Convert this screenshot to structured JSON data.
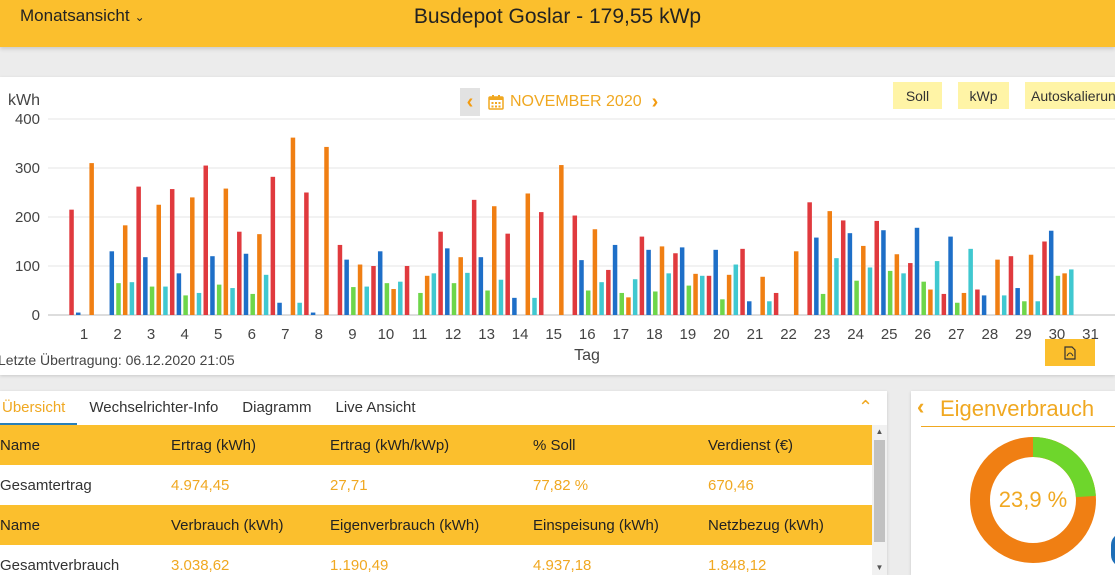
{
  "header": {
    "view_select": "Monatsansicht",
    "title": "Busdepot Goslar - 179,55 kWp"
  },
  "nav": {
    "month": "NOVEMBER 2020"
  },
  "toggles": {
    "soll": "Soll",
    "kwp": "kWp",
    "autoscale": "Autoskalierung"
  },
  "last_transfer": "Letzte Übertragung: 06.12.2020 21:05",
  "colors": {
    "header": "#fbbf2d",
    "accent": "#f0a821",
    "series": [
      "#e03a3e",
      "#1e6fc8",
      "#6ed64a",
      "#f07f13",
      "#40c8d0"
    ]
  },
  "chart_data": {
    "type": "bar",
    "ylabel": "kWh",
    "xlabel": "Tag",
    "ylim": [
      0,
      400
    ],
    "yticks": [
      0,
      100,
      200,
      300,
      400
    ],
    "categories": [
      "1",
      "2",
      "3",
      "4",
      "5",
      "6",
      "7",
      "8",
      "9",
      "10",
      "11",
      "12",
      "13",
      "14",
      "15",
      "16",
      "17",
      "18",
      "19",
      "20",
      "21",
      "22",
      "23",
      "24",
      "25",
      "26",
      "27",
      "28",
      "29",
      "30",
      "31"
    ],
    "series": [
      {
        "values": [
          215,
          0,
          262,
          257,
          305,
          170,
          282,
          250,
          143,
          100,
          100,
          170,
          235,
          166,
          210,
          203,
          92,
          160,
          126,
          80,
          135,
          45,
          230,
          193,
          192,
          106,
          43,
          52,
          120,
          150,
          0
        ]
      },
      {
        "values": [
          5,
          130,
          118,
          85,
          120,
          125,
          25,
          5,
          113,
          130,
          0,
          136,
          118,
          35,
          0,
          112,
          143,
          133,
          138,
          133,
          28,
          0,
          158,
          167,
          173,
          178,
          160,
          40,
          55,
          172,
          0
        ]
      },
      {
        "values": [
          0,
          65,
          58,
          40,
          62,
          43,
          0,
          0,
          57,
          65,
          45,
          65,
          50,
          0,
          0,
          50,
          45,
          48,
          60,
          32,
          0,
          0,
          43,
          70,
          90,
          68,
          25,
          0,
          28,
          80,
          0
        ]
      },
      {
        "values": [
          310,
          183,
          225,
          240,
          258,
          165,
          362,
          343,
          103,
          53,
          80,
          118,
          222,
          248,
          306,
          175,
          36,
          140,
          84,
          82,
          78,
          130,
          212,
          141,
          124,
          52,
          45,
          113,
          123,
          85,
          0
        ]
      },
      {
        "values": [
          0,
          67,
          58,
          45,
          55,
          82,
          25,
          0,
          58,
          68,
          85,
          86,
          72,
          35,
          0,
          67,
          73,
          85,
          80,
          103,
          28,
          0,
          116,
          97,
          85,
          110,
          135,
          40,
          28,
          93,
          0
        ]
      }
    ]
  },
  "tabs": [
    "Übersicht",
    "Wechselrichter-Info",
    "Diagramm",
    "Live Ansicht"
  ],
  "table": {
    "head1": [
      "Name",
      "Ertrag (kWh)",
      "Ertrag (kWh/kWp)",
      "% Soll",
      "Verdienst (€)"
    ],
    "row1": [
      "Gesamtertrag",
      "4.974,45",
      "27,71",
      "77,82 %",
      "670,46"
    ],
    "head2": [
      "Name",
      "Verbrauch (kWh)",
      "Eigenverbrauch (kWh)",
      "Einspeisung (kWh)",
      "Netzbezug (kWh)"
    ],
    "row2": [
      "Gesamtverbrauch",
      "3.038,62",
      "1.190,49",
      "4.937,18",
      "1.848,12"
    ]
  },
  "eigenverbrauch": {
    "title": "Eigenverbrauch",
    "percent_label": "23,9 %",
    "fraction": 0.239,
    "color_self": "#6ed62c",
    "color_rest": "#f07f13"
  }
}
